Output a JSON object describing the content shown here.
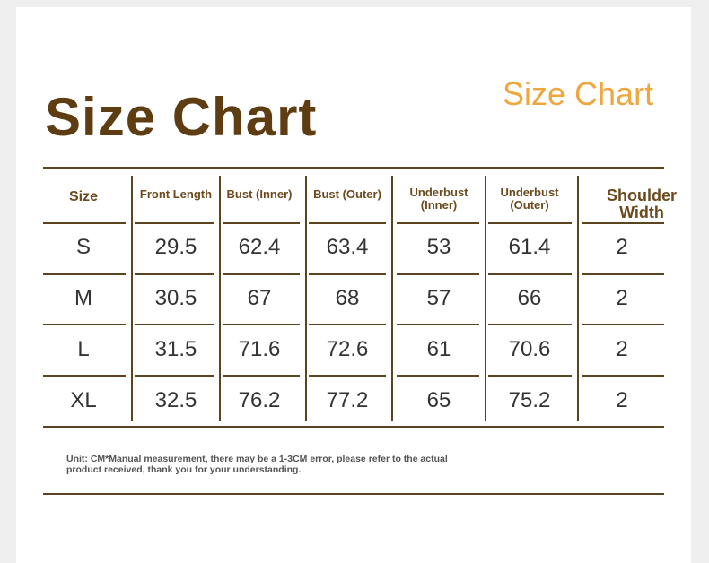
{
  "header": {
    "title": "Size Chart",
    "subtitle": "Size Chart"
  },
  "table": {
    "columns": [
      "Size",
      "Front Length",
      "Bust (Inner)",
      "Bust (Outer)",
      "Underbust (Inner)",
      "Underbust (Outer)",
      "Shoulder Width"
    ],
    "rows": [
      [
        "S",
        29.5,
        62.4,
        63.4,
        53,
        61.4,
        2
      ],
      [
        "M",
        30.5,
        67,
        68,
        57,
        66,
        2
      ],
      [
        "L",
        31.5,
        71.6,
        72.6,
        61,
        70.6,
        2
      ],
      [
        "XL",
        32.5,
        76.2,
        77.2,
        65,
        75.2,
        2
      ]
    ]
  },
  "note": "Unit: CM*Manual measurement, there may be a 1-3CM error, please refer to the actual product received, thank you for your understanding."
}
